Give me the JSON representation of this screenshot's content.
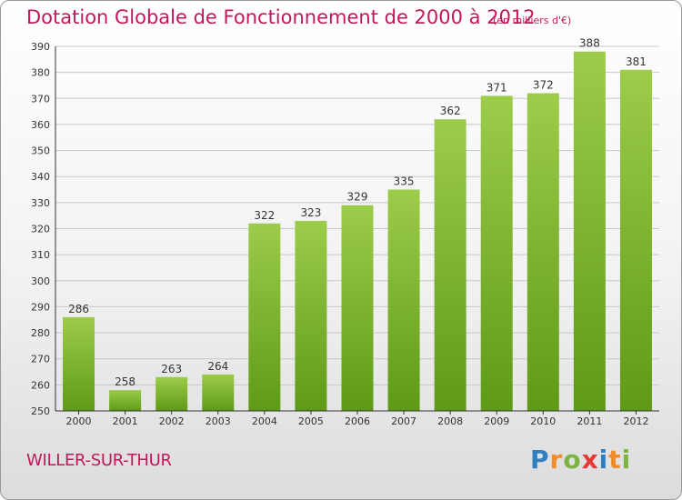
{
  "title": "Dotation Globale de Fonctionnement de 2000 à 2012",
  "subtitle": "(en milliers d'€)",
  "commune": "WILLER-SUR-THUR",
  "logo": {
    "text": "Proxiti",
    "letters": [
      {
        "ch": "P",
        "color": "#2f7fc1"
      },
      {
        "ch": "r",
        "color": "#f28c28"
      },
      {
        "ch": "o",
        "color": "#7cb342"
      },
      {
        "ch": "x",
        "color": "#e53935"
      },
      {
        "ch": "i",
        "color": "#2f7fc1"
      },
      {
        "ch": "t",
        "color": "#f28c28"
      },
      {
        "ch": "i",
        "color": "#7cb342"
      }
    ]
  },
  "colors": {
    "title": "#c2185b",
    "bar_top": "#9ccc4a",
    "bar_bottom": "#5e9a16",
    "grid": "#c8c8c8"
  },
  "chart_data": {
    "type": "bar",
    "title": "Dotation Globale de Fonctionnement de 2000 à 2012",
    "subtitle": "(en milliers d'€)",
    "categories": [
      "2000",
      "2001",
      "2002",
      "2003",
      "2004",
      "2005",
      "2006",
      "2007",
      "2008",
      "2009",
      "2010",
      "2011",
      "2012"
    ],
    "values": [
      286,
      258,
      263,
      264,
      322,
      323,
      329,
      335,
      362,
      371,
      372,
      388,
      381
    ],
    "ylim": [
      250,
      390
    ],
    "yticks": [
      250,
      260,
      270,
      280,
      290,
      300,
      310,
      320,
      330,
      340,
      350,
      360,
      370,
      380,
      390
    ],
    "grid": true,
    "xlabel": "",
    "ylabel": ""
  }
}
